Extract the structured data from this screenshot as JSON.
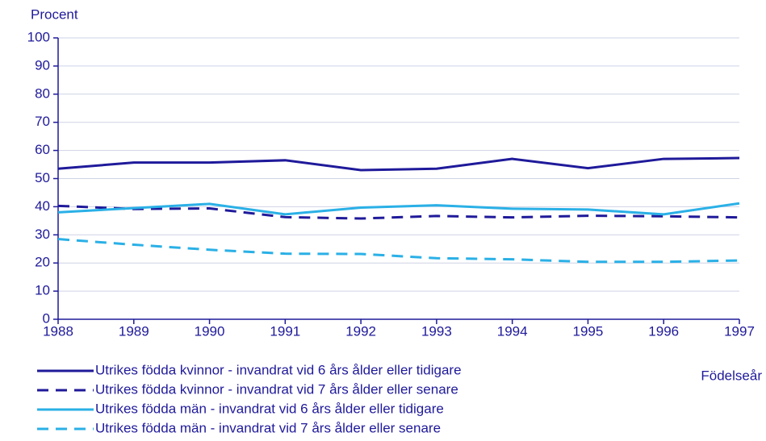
{
  "chart_data": {
    "type": "line",
    "y_label": "Procent",
    "x_label": "Födelseår",
    "x": [
      1988,
      1989,
      1990,
      1991,
      1992,
      1993,
      1994,
      1995,
      1996,
      1997
    ],
    "xlim": [
      1988,
      1997
    ],
    "xticks": [
      1988,
      1989,
      1990,
      1991,
      1992,
      1993,
      1994,
      1995,
      1996,
      1997
    ],
    "ylim": [
      0,
      100
    ],
    "yticks": [
      0,
      10,
      20,
      30,
      40,
      50,
      60,
      70,
      80,
      90,
      100
    ],
    "grid": true,
    "series": [
      {
        "name": "Utrikes födda kvinnor - invandrat vid 6 års ålder eller tidigare",
        "color": "#1f1a9a",
        "dashed": false,
        "values": [
          53.5,
          55.7,
          55.7,
          56.5,
          53,
          53.5,
          57,
          53.7,
          57,
          57.3
        ]
      },
      {
        "name": "Utrikes födda kvinnor - invandrat vid 7 års ålder eller senare",
        "color": "#1f1a9a",
        "dashed": true,
        "values": [
          40.3,
          39.2,
          39.4,
          36.3,
          35.8,
          36.7,
          36.2,
          36.8,
          36.6,
          36.2
        ]
      },
      {
        "name": "Utrikes födda män - invandrat vid 6 års ålder eller tidigare",
        "color": "#2ab0e6",
        "dashed": false,
        "values": [
          38,
          39.5,
          41,
          37.3,
          39.7,
          40.5,
          39.3,
          39,
          37.3,
          41.2
        ]
      },
      {
        "name": "Utrikes födda män - invandrat vid 7 års ålder eller senare",
        "color": "#2ab0e6",
        "dashed": true,
        "values": [
          28.5,
          26.5,
          24.7,
          23.3,
          23.2,
          21.7,
          21.3,
          20.4,
          20.4,
          20.9
        ]
      }
    ]
  }
}
